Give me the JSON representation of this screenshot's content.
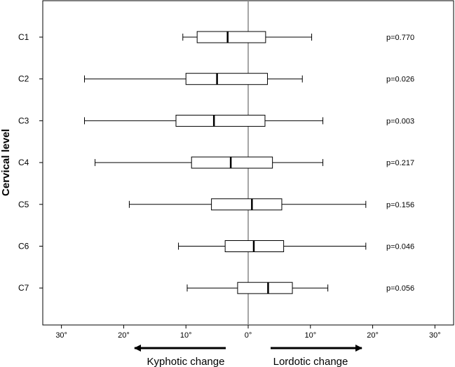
{
  "chart_data": {
    "type": "boxplot",
    "orientation": "horizontal",
    "ylabel": "Cervical level",
    "xlim": [
      -33,
      33
    ],
    "x_ticks": [
      -30,
      -20,
      -10,
      0,
      10,
      20,
      30
    ],
    "x_tick_labels": [
      "30°",
      "20°",
      "10°",
      "0°",
      "10°",
      "20°",
      "30°"
    ],
    "reference_line": 0,
    "grid": false,
    "categories": [
      "C1",
      "C2",
      "C3",
      "C4",
      "C5",
      "C6",
      "C7"
    ],
    "boxes": [
      {
        "level": "C1",
        "whisker_low": -10.5,
        "q1": -8.2,
        "median": -3.3,
        "q3": 2.8,
        "whisker_high": 10.2,
        "p_label": "p=0.770"
      },
      {
        "level": "C2",
        "whisker_low": -26.3,
        "q1": -10.0,
        "median": -5.0,
        "q3": 3.1,
        "whisker_high": 8.7,
        "p_label": "p=0.026"
      },
      {
        "level": "C3",
        "whisker_low": -26.3,
        "q1": -11.6,
        "median": -5.5,
        "q3": 2.7,
        "whisker_high": 12.0,
        "p_label": "p=0.003"
      },
      {
        "level": "C4",
        "whisker_low": -24.6,
        "q1": -9.1,
        "median": -2.8,
        "q3": 3.9,
        "whisker_high": 12.0,
        "p_label": "p=0.217"
      },
      {
        "level": "C5",
        "whisker_low": -19.1,
        "q1": -5.9,
        "median": 0.6,
        "q3": 5.4,
        "whisker_high": 18.9,
        "p_label": "p=0.156"
      },
      {
        "level": "C6",
        "whisker_low": -11.2,
        "q1": -3.7,
        "median": 0.9,
        "q3": 5.7,
        "whisker_high": 18.9,
        "p_label": "p=0.046"
      },
      {
        "level": "C7",
        "whisker_low": -9.8,
        "q1": -1.7,
        "median": 3.2,
        "q3": 7.1,
        "whisker_high": 12.8,
        "p_label": "p=0.056"
      }
    ],
    "direction_labels": {
      "left": "Kyphotic change",
      "right": "Lordotic change"
    }
  }
}
